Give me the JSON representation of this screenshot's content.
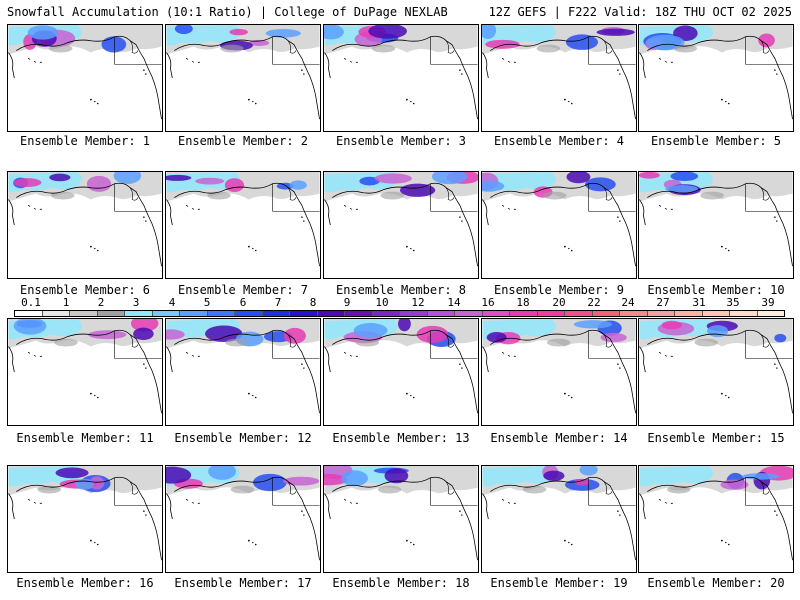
{
  "header": {
    "title_left": "Snowfall Accumulation (10:1 Ratio) | College of DuPage NEXLAB",
    "title_right": "12Z GEFS | F222 Valid: 18Z THU OCT 02 2025"
  },
  "colorbar": {
    "ticks": [
      "0.1",
      "1",
      "2",
      "3",
      "4",
      "5",
      "6",
      "7",
      "8",
      "9",
      "10",
      "12",
      "14",
      "16",
      "18",
      "20",
      "22",
      "24",
      "27",
      "31",
      "35",
      "39"
    ],
    "colors": [
      "#ffffff",
      "#e6e6e6",
      "#c8c8c8",
      "#a0a0a0",
      "#8ce8ff",
      "#78c8ff",
      "#5aa0ff",
      "#3c78ff",
      "#2850f0",
      "#1e32dc",
      "#2814c8",
      "#4b0ab4",
      "#6414b4",
      "#7828c8",
      "#963cd2",
      "#b450dc",
      "#c864d2",
      "#dc50c8",
      "#e63cb4",
      "#f03ca0",
      "#f0508c",
      "#f06478",
      "#f08c8c",
      "#f0a0a0",
      "#f5b4a5",
      "#f8c8b4",
      "#fadcc8",
      "#fcecdc"
    ]
  },
  "panels": [
    {
      "label": "Ensemble Member: 1",
      "member": 1
    },
    {
      "label": "Ensemble Member: 2",
      "member": 2
    },
    {
      "label": "Ensemble Member: 3",
      "member": 3
    },
    {
      "label": "Ensemble Member: 4",
      "member": 4
    },
    {
      "label": "Ensemble Member: 5",
      "member": 5
    },
    {
      "label": "Ensemble Member: 6",
      "member": 6
    },
    {
      "label": "Ensemble Member: 7",
      "member": 7
    },
    {
      "label": "Ensemble Member: 8",
      "member": 8
    },
    {
      "label": "Ensemble Member: 9",
      "member": 9
    },
    {
      "label": "Ensemble Member: 10",
      "member": 10
    },
    {
      "label": "Ensemble Member: 11",
      "member": 11
    },
    {
      "label": "Ensemble Member: 12",
      "member": 12
    },
    {
      "label": "Ensemble Member: 13",
      "member": 13
    },
    {
      "label": "Ensemble Member: 14",
      "member": 14
    },
    {
      "label": "Ensemble Member: 15",
      "member": 15
    },
    {
      "label": "Ensemble Member: 16",
      "member": 16
    },
    {
      "label": "Ensemble Member: 17",
      "member": 17
    },
    {
      "label": "Ensemble Member: 18",
      "member": 18
    },
    {
      "label": "Ensemble Member: 19",
      "member": 19
    },
    {
      "label": "Ensemble Member: 20",
      "member": 20
    }
  ]
}
